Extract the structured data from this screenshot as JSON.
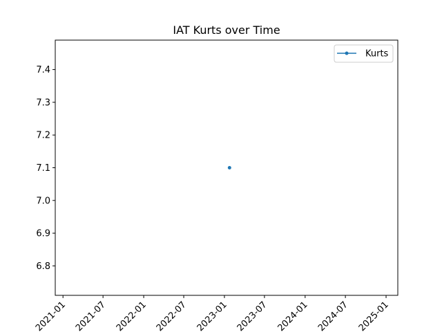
{
  "chart_data": {
    "type": "line",
    "title": "IAT Kurts over Time",
    "xlabel": "",
    "ylabel": "",
    "x_ticks": [
      "2021-01",
      "2021-07",
      "2022-01",
      "2022-07",
      "2023-01",
      "2023-07",
      "2024-01",
      "2024-07",
      "2025-01"
    ],
    "y_ticks": [
      "6.8",
      "6.9",
      "7.0",
      "7.1",
      "7.2",
      "7.3",
      "7.4"
    ],
    "xlim": [
      "2020-11-27",
      "2025-02-23"
    ],
    "ylim": [
      6.71,
      7.49
    ],
    "grid": false,
    "legend_position": "top-right",
    "series": [
      {
        "name": "Kurts",
        "color": "#1f77b4",
        "marker": "dot",
        "points": [
          {
            "x": "2023-01-24",
            "y": 7.1
          }
        ]
      }
    ]
  }
}
